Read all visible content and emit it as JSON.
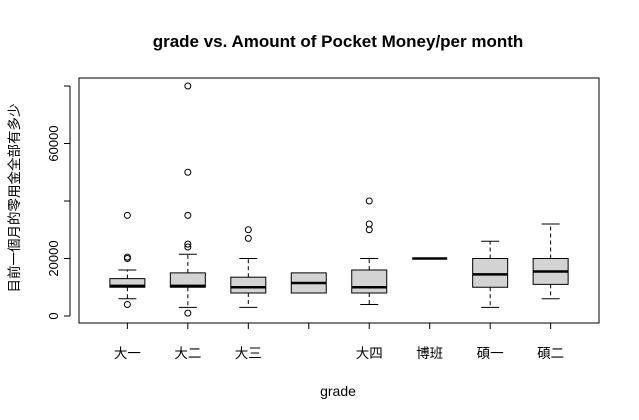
{
  "chart_data": {
    "type": "boxplot",
    "title": "grade vs. Amount of Pocket Money/per month",
    "xlabel": "grade",
    "ylabel": "目前一個月的零用金全部有多少",
    "categories": [
      "大一",
      "大二",
      "大三",
      "",
      "大四",
      "博班",
      "碩一",
      "碩二"
    ],
    "y_ticks": [
      0,
      20000,
      60000
    ],
    "y_tick_labels": [
      "0",
      "20000",
      "60000"
    ],
    "ylim": [
      -1500,
      83000
    ],
    "box_color": "#d3d3d3",
    "grid": false,
    "boxes": [
      {
        "category": "大一",
        "lower_whisker": 6000,
        "q1": 10000,
        "median": 10500,
        "q3": 13000,
        "upper_whisker": 16000,
        "outliers": [
          4000,
          20000,
          20500,
          35000
        ]
      },
      {
        "category": "大二",
        "lower_whisker": 3000,
        "q1": 10000,
        "median": 10500,
        "q3": 15000,
        "upper_whisker": 21500,
        "outliers": [
          1000,
          24000,
          25000,
          35000,
          50000,
          80000
        ]
      },
      {
        "category": "大三",
        "lower_whisker": 3000,
        "q1": 8000,
        "median": 10000,
        "q3": 13500,
        "upper_whisker": 20000,
        "outliers": [
          27000,
          30000
        ]
      },
      {
        "category": "",
        "lower_whisker": 8000,
        "q1": 8000,
        "median": 11500,
        "q3": 15000,
        "upper_whisker": 15000,
        "outliers": []
      },
      {
        "category": "大四",
        "lower_whisker": 4000,
        "q1": 8000,
        "median": 10000,
        "q3": 16000,
        "upper_whisker": 20000,
        "outliers": [
          30000,
          32000,
          40000
        ]
      },
      {
        "category": "博班",
        "lower_whisker": 20000,
        "q1": 20000,
        "median": 20000,
        "q3": 20000,
        "upper_whisker": 20000,
        "outliers": []
      },
      {
        "category": "碩一",
        "lower_whisker": 3000,
        "q1": 10000,
        "median": 14500,
        "q3": 20000,
        "upper_whisker": 26000,
        "outliers": []
      },
      {
        "category": "碩二",
        "lower_whisker": 6000,
        "q1": 11000,
        "median": 15500,
        "q3": 20000,
        "upper_whisker": 32000,
        "outliers": []
      }
    ]
  }
}
